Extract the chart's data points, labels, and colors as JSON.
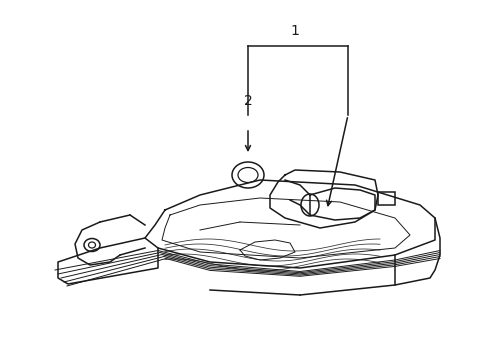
{
  "bg_color": "#ffffff",
  "line_color": "#1a1a1a",
  "fig_width": 4.89,
  "fig_height": 3.6,
  "dpi": 100,
  "label1": "1",
  "label2": "2",
  "lw_main": 1.1,
  "lw_thin": 0.7
}
